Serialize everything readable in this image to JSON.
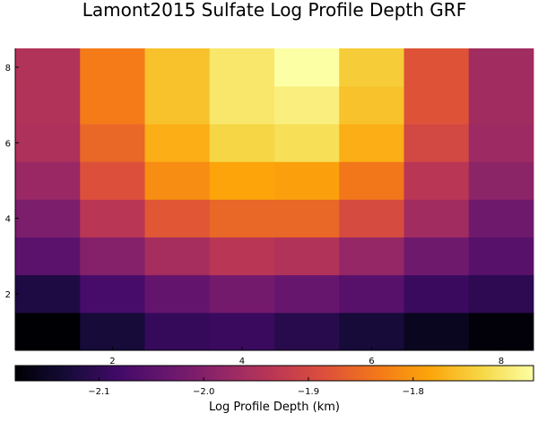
{
  "chart_data": {
    "type": "heatmap",
    "title": "Lamont2015 Sulfate Log Profile Depth GRF",
    "x": [
      1,
      2,
      3,
      4,
      5,
      6,
      7,
      8
    ],
    "y": [
      1,
      2,
      3,
      4,
      5,
      6,
      7,
      8
    ],
    "xlim": [
      0.5,
      8.5
    ],
    "ylim": [
      0.5,
      8.5
    ],
    "xticks": [
      2,
      4,
      6,
      8
    ],
    "xtick_labels": [
      "2",
      "4",
      "6",
      "8"
    ],
    "yticks": [
      2,
      4,
      6,
      8
    ],
    "ytick_labels": [
      "2",
      "4",
      "6",
      "8"
    ],
    "grid": false,
    "z": [
      [
        -2.18,
        -2.13,
        -2.095,
        -2.09,
        -2.11,
        -2.13,
        -2.155,
        -2.175
      ],
      [
        -2.12,
        -2.075,
        -2.04,
        -2.02,
        -2.035,
        -2.055,
        -2.09,
        -2.105
      ],
      [
        -2.05,
        -2.0,
        -1.96,
        -1.935,
        -1.945,
        -1.98,
        -2.025,
        -2.055
      ],
      [
        -2.01,
        -1.935,
        -1.875,
        -1.855,
        -1.855,
        -1.895,
        -1.965,
        -2.025
      ],
      [
        -1.975,
        -1.885,
        -1.81,
        -1.785,
        -1.79,
        -1.835,
        -1.935,
        -1.99
      ],
      [
        -1.95,
        -1.855,
        -1.775,
        -1.735,
        -1.725,
        -1.775,
        -1.9,
        -1.97
      ],
      [
        -1.945,
        -1.83,
        -1.755,
        -1.715,
        -1.705,
        -1.755,
        -1.88,
        -1.965
      ],
      [
        -1.945,
        -1.83,
        -1.755,
        -1.715,
        -1.685,
        -1.745,
        -1.88,
        -1.965
      ]
    ],
    "colorbar": {
      "colormap": "inferno",
      "range": [
        -2.18,
        -1.685
      ],
      "ticks": [
        -2.1,
        -2.0,
        -1.9,
        -1.8
      ],
      "tick_labels": [
        "−2.1",
        "−2.0",
        "−1.9",
        "−1.8"
      ],
      "label": "Log Profile Depth (km)"
    }
  }
}
